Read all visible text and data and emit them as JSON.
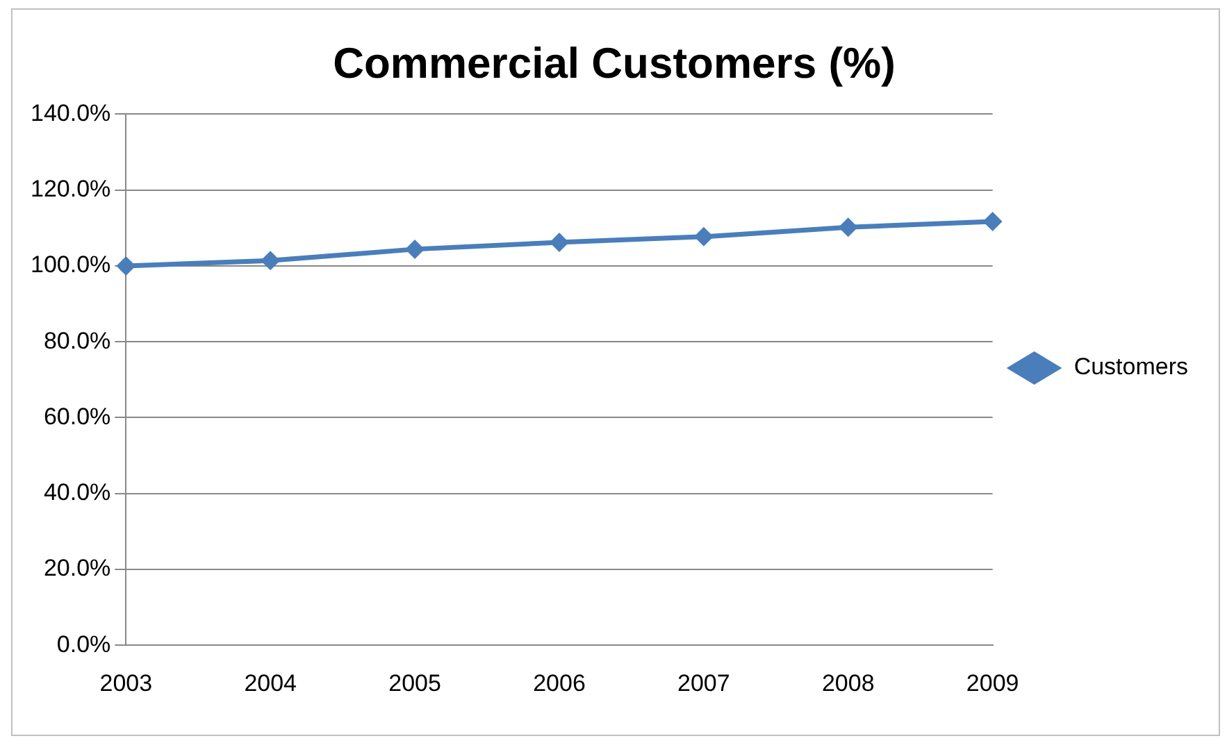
{
  "chart_data": {
    "type": "line",
    "title": "Commercial Customers (%)",
    "categories": [
      "2003",
      "2004",
      "2005",
      "2006",
      "2007",
      "2008",
      "2009"
    ],
    "series": [
      {
        "name": "Customers",
        "color": "#4a7ebb",
        "values": [
          100,
          101.4,
          104.4,
          106.2,
          107.7,
          110.2,
          111.7
        ]
      }
    ],
    "ylim": [
      0,
      140
    ],
    "yticks": [
      {
        "value": 0,
        "label": "0.0%"
      },
      {
        "value": 20,
        "label": "20.0%"
      },
      {
        "value": 40,
        "label": "40.0%"
      },
      {
        "value": 60,
        "label": "60.0%"
      },
      {
        "value": 80,
        "label": "80.0%"
      },
      {
        "value": 100,
        "label": "100.0%"
      },
      {
        "value": 120,
        "label": "120.0%"
      },
      {
        "value": 140,
        "label": "140.0%"
      }
    ],
    "grid": "y",
    "legend": "right",
    "marker": "diamond",
    "line_style": "solid"
  }
}
